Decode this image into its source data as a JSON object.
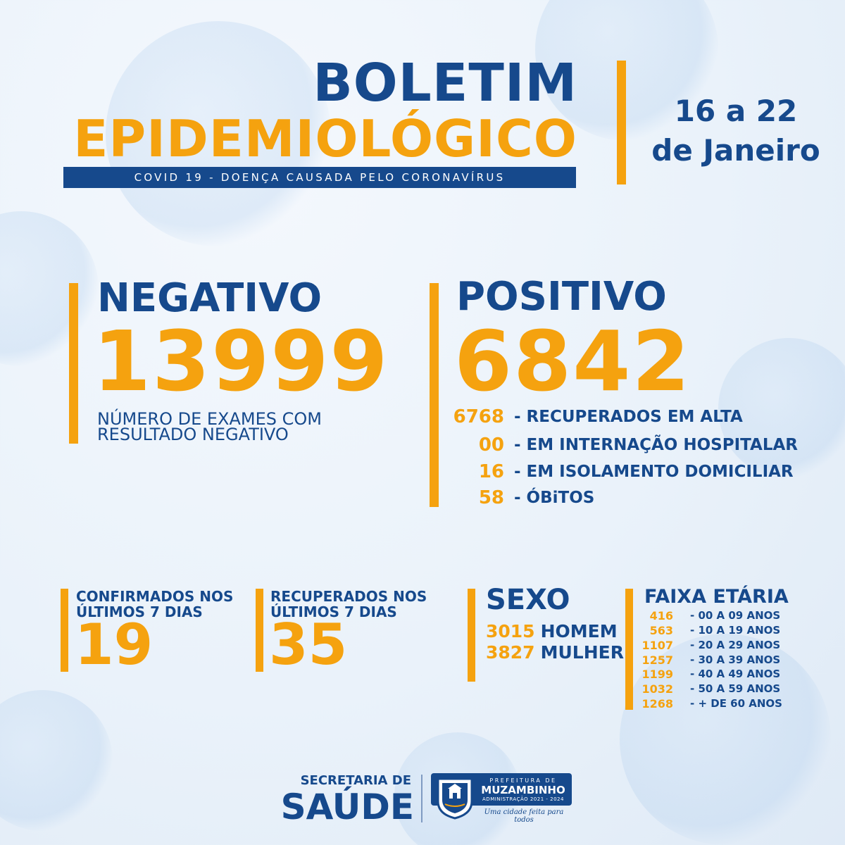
{
  "header": {
    "title_line1": "BOLETIM",
    "title_line2": "EPIDEMIOLÓGICO",
    "subtitle": "COVID 19 - DOENÇA CAUSADA PELO CORONAVÍRUS",
    "date_line1": "16 a 22",
    "date_line2": "de Janeiro"
  },
  "negativo": {
    "label": "NEGATIVO",
    "value": "13999",
    "desc_line1": "NÚMERO DE EXAMES COM",
    "desc_line2": "RESULTADO NEGATIVO"
  },
  "positivo": {
    "label": "POSITIVO",
    "value": "6842",
    "items": [
      {
        "value": "6768",
        "label": "- RECUPERADOS EM ALTA"
      },
      {
        "value": "00",
        "label": "- EM INTERNAÇÃO HOSPITALAR"
      },
      {
        "value": "16",
        "label": "- EM ISOLAMENTO DOMICILIAR"
      },
      {
        "value": "58",
        "label": "- ÓBiTOS"
      }
    ]
  },
  "confirmados": {
    "line1": "CONFIRMADOS NOS",
    "line2": "ÚLTIMOS 7 DIAS",
    "value": "19"
  },
  "recuperados": {
    "line1": "RECUPERADOS NOS",
    "line2": "ÚLTIMOS 7 DIAS",
    "value": "35"
  },
  "sexo": {
    "title": "SEXO",
    "items": [
      {
        "value": "3015",
        "label": "HOMEM"
      },
      {
        "value": "3827",
        "label": "MULHER"
      }
    ]
  },
  "faixa": {
    "title": "FAIXA ETÁRIA",
    "items": [
      {
        "value": "416",
        "label": "- 00 A 09 ANOS"
      },
      {
        "value": "563",
        "label": "- 10 A 19 ANOS"
      },
      {
        "value": "1107",
        "label": "- 20 A 29 ANOS"
      },
      {
        "value": "1257",
        "label": "- 30 A 39 ANOS"
      },
      {
        "value": "1199",
        "label": "- 40 A 49 ANOS"
      },
      {
        "value": "1032",
        "label": "- 50 A 59 ANOS"
      },
      {
        "value": "1268",
        "label": "- + DE 60 ANOS"
      }
    ]
  },
  "footer": {
    "secretaria": "SECRETARIA DE",
    "saude": "SAÚDE",
    "prefeitura": "PREFEITURA DE",
    "city": "MUZAMBINHO",
    "administracao": "ADMINISTRAÇÃO 2021 - 2024",
    "slogan": "Uma cidade feita para todos"
  },
  "colors": {
    "blue": "#16498c",
    "orange": "#f5a20f",
    "background": "#eaf2fa"
  }
}
